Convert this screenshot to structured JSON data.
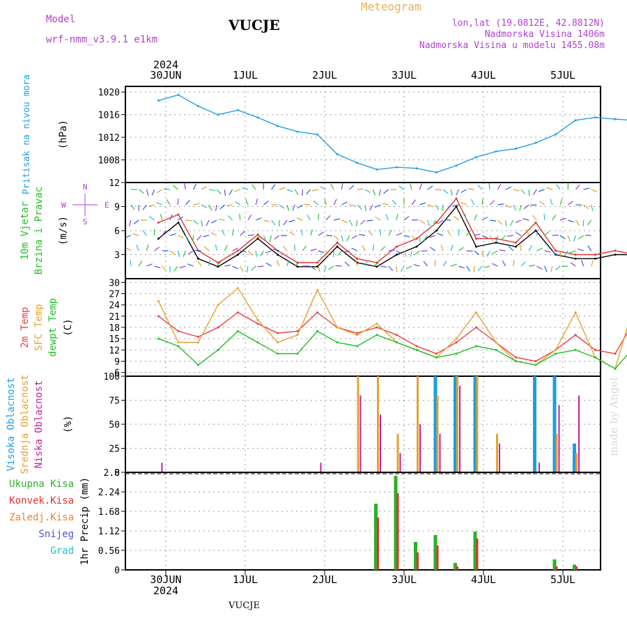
{
  "header": {
    "model_label": "Model",
    "model_name": "wrf-nmm_v3.9.1  e1km",
    "station": "VUCJE",
    "meteogram_label": "Meteogram",
    "coords": "lon,lat (19.0812E, 42.8812N)",
    "elevation": "Nadmorska Visina 1406m",
    "model_elevation": "Nadmorska Visina u modelu 1455.08m",
    "footer_station": "VUCJE",
    "credit": "made by Angel"
  },
  "time_axis": {
    "year": "2024",
    "days": [
      "30JUN",
      "1JUL",
      "2JUL",
      "3JUL",
      "4JUL",
      "5JUL"
    ]
  },
  "colors": {
    "pressure": "#1fa0e0",
    "wind_speed": "#000000",
    "wind_gust": "#e03030",
    "temp2m": "#e84040",
    "sfc_temp": "#e8a030",
    "dewpoint": "#20c020",
    "cloud_high": "#1aa0e0",
    "cloud_mid": "#e8a030",
    "cloud_low": "#c020a0",
    "precip_total": "#2ab02a",
    "precip_conv": "#e03030",
    "precip_frozen": "#f08030",
    "precip_snow": "#5050e0",
    "precip_hail": "#20c0c0"
  },
  "chart_data": [
    {
      "type": "line",
      "name": "pressure",
      "ylabel": "Pritisak na nivou mora",
      "unit": "(hPa)",
      "ylim": [
        1004,
        1021
      ],
      "yticks": [
        1008,
        1012,
        1016,
        1020
      ],
      "x_hours": [
        0,
        6,
        12,
        18,
        24,
        30,
        36,
        42,
        48,
        54,
        60,
        66,
        72,
        78,
        84,
        90,
        96,
        102,
        108,
        114,
        120,
        126,
        132,
        138,
        144
      ],
      "series": [
        {
          "values": [
            1018.5,
            1019.5,
            1017.5,
            1016,
            1016.8,
            1015.5,
            1014,
            1013,
            1012.5,
            1009,
            1007.5,
            1006.3,
            1006.7,
            1006.5,
            1005.8,
            1007,
            1008.5,
            1009.5,
            1010,
            1011,
            1012.5,
            1015,
            1015.5,
            1015.2,
            1015
          ]
        }
      ]
    },
    {
      "type": "line",
      "name": "wind",
      "ylabel": "10m Vjetar Brzina i Pravac",
      "unit": "(m/s)",
      "compass": [
        "N",
        "S",
        "W",
        "E"
      ],
      "ylim": [
        0,
        12
      ],
      "yticks": [
        3,
        6,
        9,
        12
      ],
      "x_hours": [
        0,
        6,
        12,
        18,
        24,
        30,
        36,
        42,
        48,
        54,
        60,
        66,
        72,
        78,
        84,
        90,
        96,
        102,
        108,
        114,
        120,
        126,
        132,
        138,
        144
      ],
      "series": [
        {
          "values": [
            5,
            7,
            2.5,
            1.5,
            3,
            5,
            3,
            1.5,
            1.5,
            4,
            2,
            1.5,
            3,
            4,
            6,
            9,
            4,
            4.5,
            4,
            6,
            3,
            2.5,
            2.5,
            3,
            3
          ]
        },
        {
          "values": [
            7,
            8,
            3.5,
            2,
            3.5,
            5.5,
            3.5,
            2,
            2,
            4.5,
            2.5,
            2,
            4,
            5,
            7,
            10,
            5,
            5,
            4.5,
            7,
            3.5,
            3,
            3,
            3.5,
            3
          ]
        }
      ]
    },
    {
      "type": "line",
      "name": "temperature",
      "ylabel": "2m Temp / SFC Temp / dewpt Temp",
      "unit": "(C)",
      "ylim": [
        5,
        31
      ],
      "yticks": [
        6,
        9,
        12,
        15,
        18,
        21,
        24,
        27,
        30
      ],
      "x_hours": [
        0,
        6,
        12,
        18,
        24,
        30,
        36,
        42,
        48,
        54,
        60,
        66,
        72,
        78,
        84,
        90,
        96,
        102,
        108,
        114,
        120,
        126,
        132,
        138,
        144
      ],
      "series": [
        {
          "name": "2m Temp",
          "values": [
            21,
            17,
            15.5,
            18,
            22,
            19,
            16.5,
            17,
            22,
            18,
            16.5,
            18,
            16,
            13,
            11,
            14,
            18,
            14,
            10,
            9,
            12,
            16,
            12,
            11,
            20
          ]
        },
        {
          "name": "SFC Temp",
          "values": [
            25,
            14,
            14,
            24,
            28.5,
            20,
            14,
            16,
            28,
            18,
            16,
            19,
            14,
            12,
            10,
            15,
            22,
            14,
            9,
            8,
            12,
            22,
            10,
            7,
            25
          ]
        },
        {
          "name": "dewpt Temp",
          "values": [
            15,
            13,
            8,
            12,
            17,
            14,
            11,
            11,
            17,
            14,
            13,
            16,
            14,
            12,
            10,
            11,
            13,
            12,
            9,
            8,
            11,
            12,
            10,
            7,
            13
          ]
        }
      ]
    },
    {
      "type": "bar",
      "name": "clouds",
      "ylabel": "Visoka Oblacnost / Srednja Oblacnost / Niska Oblacnost",
      "unit": "(%)",
      "ylim": [
        0,
        100
      ],
      "yticks": [
        0,
        25,
        50,
        75,
        100
      ],
      "x_hours": [
        0,
        6,
        12,
        18,
        24,
        30,
        36,
        42,
        48,
        54,
        60,
        66,
        72,
        78,
        84,
        90,
        96,
        102,
        108,
        114,
        120,
        126,
        132,
        138,
        144
      ],
      "series": [
        {
          "name": "Visoka Oblacnost",
          "values": [
            0,
            0,
            0,
            0,
            0,
            0,
            0,
            0,
            0,
            0,
            0,
            0,
            0,
            0,
            100,
            100,
            100,
            0,
            0,
            100,
            100,
            30,
            0,
            0,
            0
          ]
        },
        {
          "name": "Srednja Oblacnost",
          "values": [
            0,
            0,
            0,
            0,
            0,
            0,
            0,
            0,
            0,
            0,
            100,
            100,
            40,
            100,
            80,
            100,
            100,
            40,
            0,
            0,
            40,
            20,
            0,
            0,
            0
          ]
        },
        {
          "name": "Niska Oblacnost",
          "values": [
            10,
            0,
            0,
            0,
            0,
            0,
            0,
            0,
            10,
            0,
            80,
            60,
            20,
            50,
            40,
            90,
            0,
            30,
            0,
            10,
            70,
            80,
            0,
            0,
            0
          ]
        }
      ]
    },
    {
      "type": "bar",
      "name": "precip",
      "ylabel": "1hr Precip (mm)",
      "ylim": [
        0,
        2.8
      ],
      "yticks": [
        0,
        0.56,
        1.12,
        1.68,
        2.24,
        2.8
      ],
      "legend": [
        "Ukupna Kisa",
        "Konvek.Kisa",
        "Zaledj.Kisa",
        "Snijeg",
        "Grad"
      ],
      "x_hours": [
        0,
        6,
        12,
        18,
        24,
        30,
        36,
        42,
        48,
        54,
        60,
        66,
        72,
        78,
        84,
        90,
        96,
        102,
        108,
        114,
        120,
        126,
        132,
        138,
        144
      ],
      "series": [
        {
          "name": "Ukupna Kisa",
          "values": [
            0,
            0,
            0,
            0,
            0,
            0,
            0,
            0,
            0,
            0,
            0,
            1.9,
            2.7,
            0.8,
            1.0,
            0.2,
            1.1,
            0,
            0,
            0,
            0.3,
            0.15,
            0,
            0,
            0
          ]
        },
        {
          "name": "Konvek.Kisa",
          "values": [
            0,
            0,
            0,
            0,
            0,
            0,
            0,
            0,
            0,
            0,
            0,
            1.5,
            2.2,
            0.5,
            0.7,
            0.1,
            0.9,
            0,
            0,
            0,
            0.1,
            0.1,
            0,
            0,
            0
          ]
        }
      ]
    }
  ]
}
